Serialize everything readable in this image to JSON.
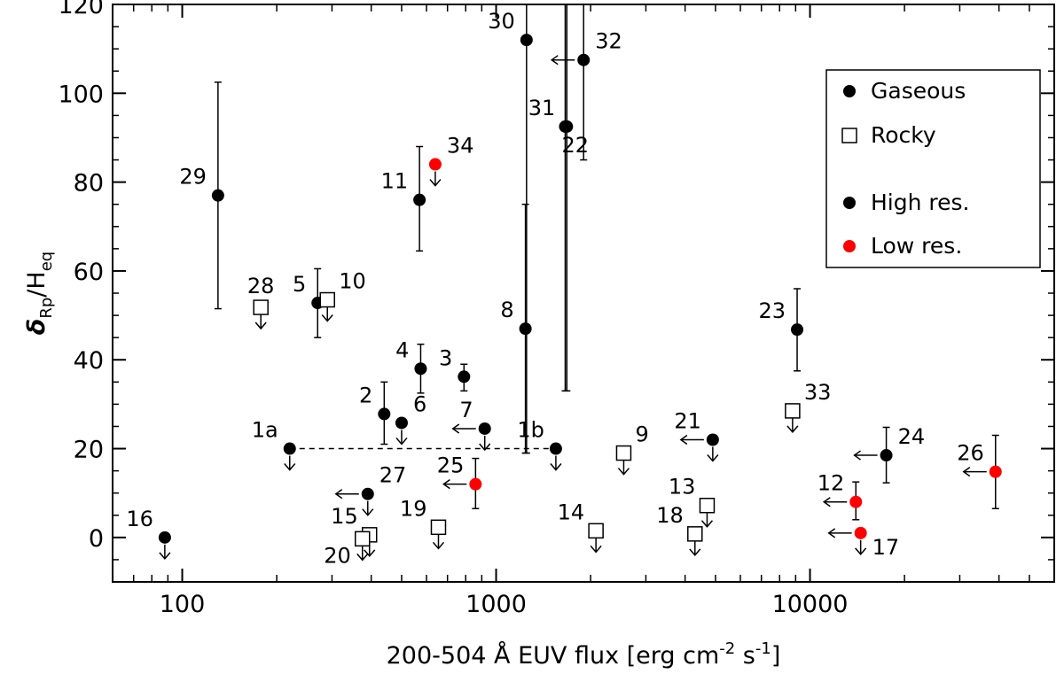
{
  "chart_data": {
    "type": "scatter",
    "title": "",
    "xlabel": "200-504 Å EUV flux [erg cm",
    "xlabel_sup1": "-2",
    "xlabel_mid": " s",
    "xlabel_sup2": "-1",
    "xlabel_end": "]",
    "ylabel": "δ",
    "ylabel_sub": "Rp",
    "ylabel_div": "/H",
    "ylabel_sub2": "eq",
    "xscale": "log",
    "xlim": [
      60,
      60000
    ],
    "ylim": [
      -10,
      120
    ],
    "xticks": [
      100,
      1000,
      10000
    ],
    "xtick_labels": [
      "100",
      "1000",
      "10000"
    ],
    "yticks": [
      0,
      20,
      40,
      60,
      80,
      100,
      120
    ],
    "ytick_labels": [
      "0",
      "20",
      "40",
      "60",
      "80",
      "100",
      "120"
    ],
    "legend": {
      "position": "top-right",
      "entries": [
        {
          "label": "Gaseous",
          "marker": "circle",
          "color": "#000000"
        },
        {
          "label": "Rocky",
          "marker": "square",
          "color": "#000000"
        },
        {
          "label": "High res.",
          "marker": "circle",
          "color": "#000000"
        },
        {
          "label": "Low res.",
          "marker": "circle",
          "color": "#ff0000"
        }
      ]
    },
    "colors": {
      "high_res": "#000000",
      "low_res": "#ff0000"
    },
    "connector": {
      "from_label": "1a",
      "to_label": "1b",
      "style": "dashed",
      "y": 20
    },
    "points": [
      {
        "label": "1a",
        "x": 220,
        "y": 20,
        "type": "gaseous",
        "res": "high",
        "upper": true,
        "labelPos": "tl"
      },
      {
        "label": "1b",
        "x": 1550,
        "y": 20,
        "type": "gaseous",
        "res": "high",
        "upper": true,
        "labelPos": "tl"
      },
      {
        "label": "2",
        "x": 440,
        "y": 27.8,
        "yerr": [
          21,
          35
        ],
        "type": "gaseous",
        "res": "high",
        "labelPos": "tl"
      },
      {
        "label": "3",
        "x": 790,
        "y": 36.2,
        "yerr": [
          33,
          39
        ],
        "type": "gaseous",
        "res": "high",
        "labelPos": "tl"
      },
      {
        "label": "4",
        "x": 575,
        "y": 38,
        "yerr": [
          32.5,
          43.5
        ],
        "type": "gaseous",
        "res": "high",
        "labelPos": "tl"
      },
      {
        "label": "5",
        "x": 270,
        "y": 52.8,
        "yerr": [
          45,
          60.5
        ],
        "type": "gaseous",
        "res": "high",
        "labelPos": "tl"
      },
      {
        "label": "6",
        "x": 500,
        "y": 25.8,
        "type": "gaseous",
        "res": "high",
        "upper": true,
        "labelPos": "tr"
      },
      {
        "label": "7",
        "x": 920,
        "y": 24.5,
        "type": "gaseous",
        "res": "high",
        "upper": true,
        "left": true,
        "labelPos": "tl"
      },
      {
        "label": "8",
        "x": 1240,
        "y": 47,
        "yerr": [
          19,
          75
        ],
        "type": "gaseous",
        "res": "high",
        "labelPos": "tl"
      },
      {
        "label": "9",
        "x": 2550,
        "y": 19,
        "type": "rocky",
        "res": "high",
        "upper": true,
        "labelPos": "tr"
      },
      {
        "label": "10",
        "x": 290,
        "y": 53.5,
        "type": "rocky",
        "res": "high",
        "upper": true,
        "labelPos": "tr"
      },
      {
        "label": "11",
        "x": 570,
        "y": 76,
        "yerr": [
          64.5,
          88
        ],
        "type": "gaseous",
        "res": "high",
        "labelPos": "tl"
      },
      {
        "label": "12",
        "x": 14000,
        "y": 8,
        "yerr": [
          4,
          12.5
        ],
        "type": "gaseous",
        "res": "low",
        "left": true,
        "labelPos": "tl"
      },
      {
        "label": "13",
        "x": 4700,
        "y": 7.2,
        "type": "rocky",
        "res": "high",
        "upper": true,
        "labelPos": "tl"
      },
      {
        "label": "14",
        "x": 2080,
        "y": 1.5,
        "type": "rocky",
        "res": "high",
        "upper": true,
        "labelPos": "tl"
      },
      {
        "label": "15",
        "x": 395,
        "y": 0.6,
        "type": "rocky",
        "res": "high",
        "upper": true,
        "labelPos": "tl"
      },
      {
        "label": "16",
        "x": 88,
        "y": 0,
        "type": "gaseous",
        "res": "high",
        "upper": true,
        "labelPos": "tl"
      },
      {
        "label": "17",
        "x": 14500,
        "y": 1,
        "type": "gaseous",
        "res": "low",
        "upper": true,
        "left": true,
        "labelPos": "br"
      },
      {
        "label": "18",
        "x": 4300,
        "y": 0.8,
        "type": "rocky",
        "res": "high",
        "upper": true,
        "labelPos": "tl"
      },
      {
        "label": "19",
        "x": 655,
        "y": 2.3,
        "type": "rocky",
        "res": "high",
        "upper": true,
        "labelPos": "tl"
      },
      {
        "label": "20",
        "x": 375,
        "y": -0.3,
        "type": "rocky",
        "res": "high",
        "upper": true,
        "labelPos": "bl"
      },
      {
        "label": "21",
        "x": 4900,
        "y": 22,
        "type": "gaseous",
        "res": "high",
        "upper": true,
        "left": true,
        "labelPos": "tl"
      },
      {
        "label": "22",
        "x": 1660,
        "y": 92.5,
        "yerr": [
          33,
          120
        ],
        "type": "gaseous",
        "res": "high",
        "labelPos": "lbl22"
      },
      {
        "label": "23",
        "x": 9100,
        "y": 46.8,
        "yerr": [
          37.5,
          56
        ],
        "type": "gaseous",
        "res": "high",
        "labelPos": "tl"
      },
      {
        "label": "24",
        "x": 17500,
        "y": 18.5,
        "yerr": [
          12.3,
          24.8
        ],
        "type": "gaseous",
        "res": "high",
        "left": true,
        "labelPos": "tr"
      },
      {
        "label": "25",
        "x": 860,
        "y": 12,
        "yerr": [
          6.5,
          17.8
        ],
        "type": "gaseous",
        "res": "low",
        "left": true,
        "labelPos": "tl"
      },
      {
        "label": "26",
        "x": 39000,
        "y": 14.8,
        "yerr": [
          6.5,
          23
        ],
        "type": "gaseous",
        "res": "low",
        "left": true,
        "labelPos": "tl"
      },
      {
        "label": "27",
        "x": 390,
        "y": 9.8,
        "type": "gaseous",
        "res": "high",
        "upper": true,
        "left": true,
        "labelPos": "tr"
      },
      {
        "label": "28",
        "x": 178,
        "y": 51.8,
        "type": "rocky",
        "res": "high",
        "upper": true,
        "labelPos": "t"
      },
      {
        "label": "29",
        "x": 130,
        "y": 77,
        "yerr": [
          51.5,
          102.5
        ],
        "type": "gaseous",
        "res": "high",
        "labelPos": "tl"
      },
      {
        "label": "30",
        "x": 1250,
        "y": 112,
        "yerr": [
          19,
          120
        ],
        "type": "gaseous",
        "res": "high",
        "labelPos": "tl"
      },
      {
        "label": "31",
        "x": 1680,
        "y": 92.5,
        "yerr": [
          33,
          120
        ],
        "type": "gaseous",
        "res": "high",
        "labelPos": "tl"
      },
      {
        "label": "32",
        "x": 1900,
        "y": 107.5,
        "yerr": [
          85,
          120
        ],
        "type": "gaseous",
        "res": "high",
        "left": true,
        "labelPos": "tr"
      },
      {
        "label": "33",
        "x": 8800,
        "y": 28.5,
        "type": "rocky",
        "res": "high",
        "upper": true,
        "labelPos": "tr"
      },
      {
        "label": "34",
        "x": 640,
        "y": 84,
        "type": "gaseous",
        "res": "low",
        "upper": true,
        "labelPos": "tr"
      }
    ]
  }
}
